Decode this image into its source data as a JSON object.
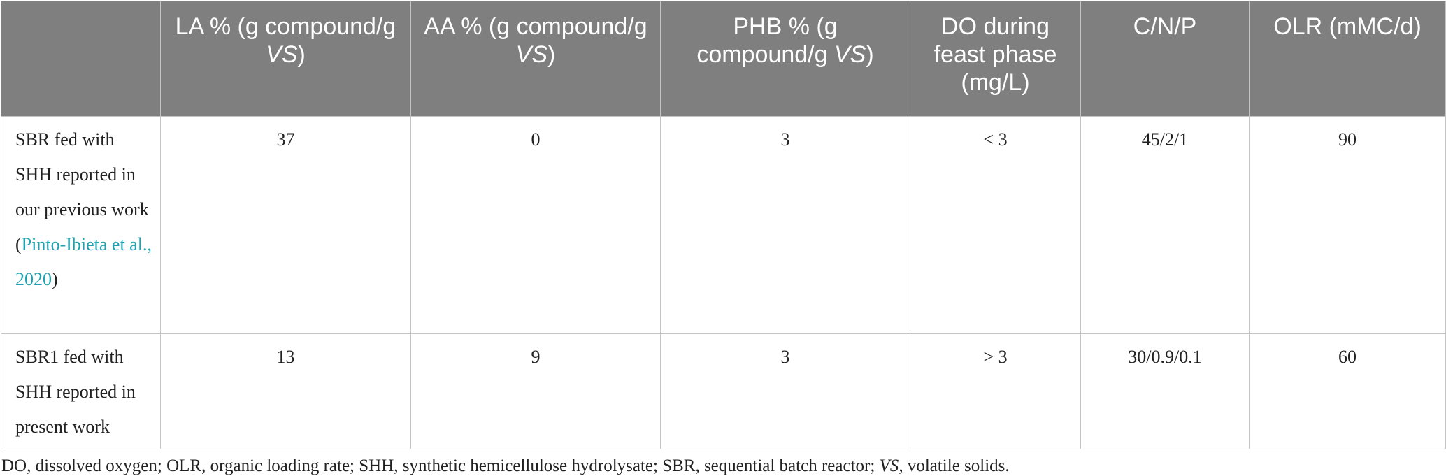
{
  "table": {
    "header": [
      [
        {
          "text": "LA % (g compound/g "
        },
        {
          "text": "VS",
          "italic": true
        },
        {
          "text": ")"
        }
      ],
      [
        {
          "text": "AA % (g compound/g "
        },
        {
          "text": "VS",
          "italic": true
        },
        {
          "text": ")"
        }
      ],
      [
        {
          "text": "PHB % (g compound/g "
        },
        {
          "text": "VS",
          "italic": true
        },
        {
          "text": ")"
        }
      ],
      [
        {
          "text": "DO during feast phase (mg/L)"
        }
      ],
      [
        {
          "text": "C/N/P"
        }
      ],
      [
        {
          "text": "OLR (mMC/d)"
        }
      ]
    ],
    "rows": [
      [
        [
          {
            "text": "SBR fed with SHH reported in our previous work ("
          },
          {
            "text": "Pinto-Ibieta et al., 2020",
            "link": true
          },
          {
            "text": ")"
          }
        ],
        37,
        0,
        3,
        "< 3",
        "45/2/1",
        90
      ],
      [
        [
          {
            "text": "SBR1 fed with SHH reported in present work"
          }
        ],
        13,
        9,
        3,
        "> 3",
        "30/0.9/0.1",
        60
      ]
    ]
  },
  "footnote": [
    {
      "text": "DO, dissolved oxygen; OLR, organic loading rate; SHH, synthetic hemicellulose hydrolysate; SBR, sequential batch reactor; "
    },
    {
      "text": "VS",
      "italic": true
    },
    {
      "text": ", volatile solids."
    }
  ]
}
